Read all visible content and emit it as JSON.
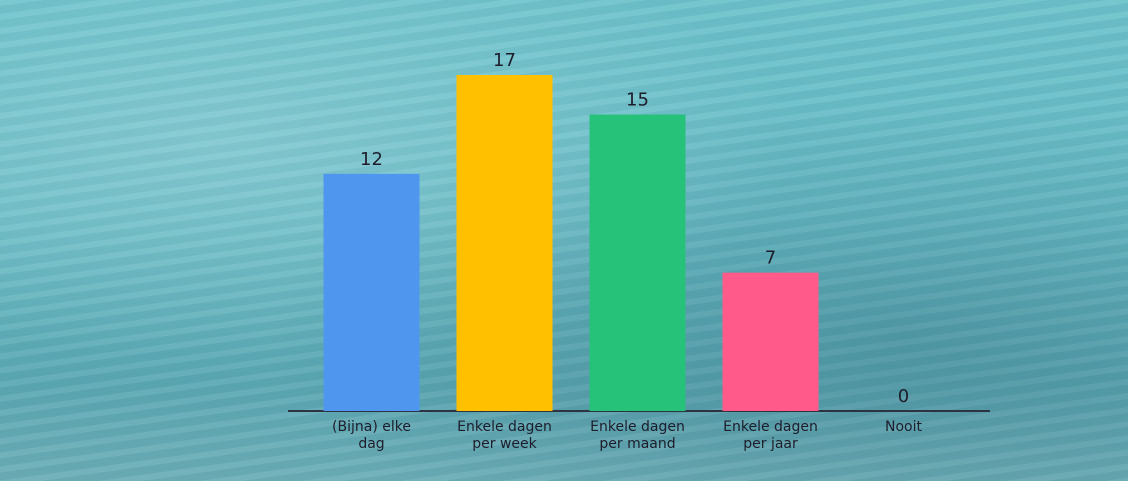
{
  "chart_data": {
    "type": "bar",
    "categories": [
      "(Bijna) elke dag",
      "Enkele dagen per week",
      "Enkele dagen per maand",
      "Enkele dagen per jaar",
      "Nooit"
    ],
    "values": [
      12,
      17,
      15,
      7,
      0
    ],
    "colors": [
      "#4f97ee",
      "#ffc000",
      "#27c27a",
      "#ff5a8a",
      "#9aa0a6"
    ]
  }
}
